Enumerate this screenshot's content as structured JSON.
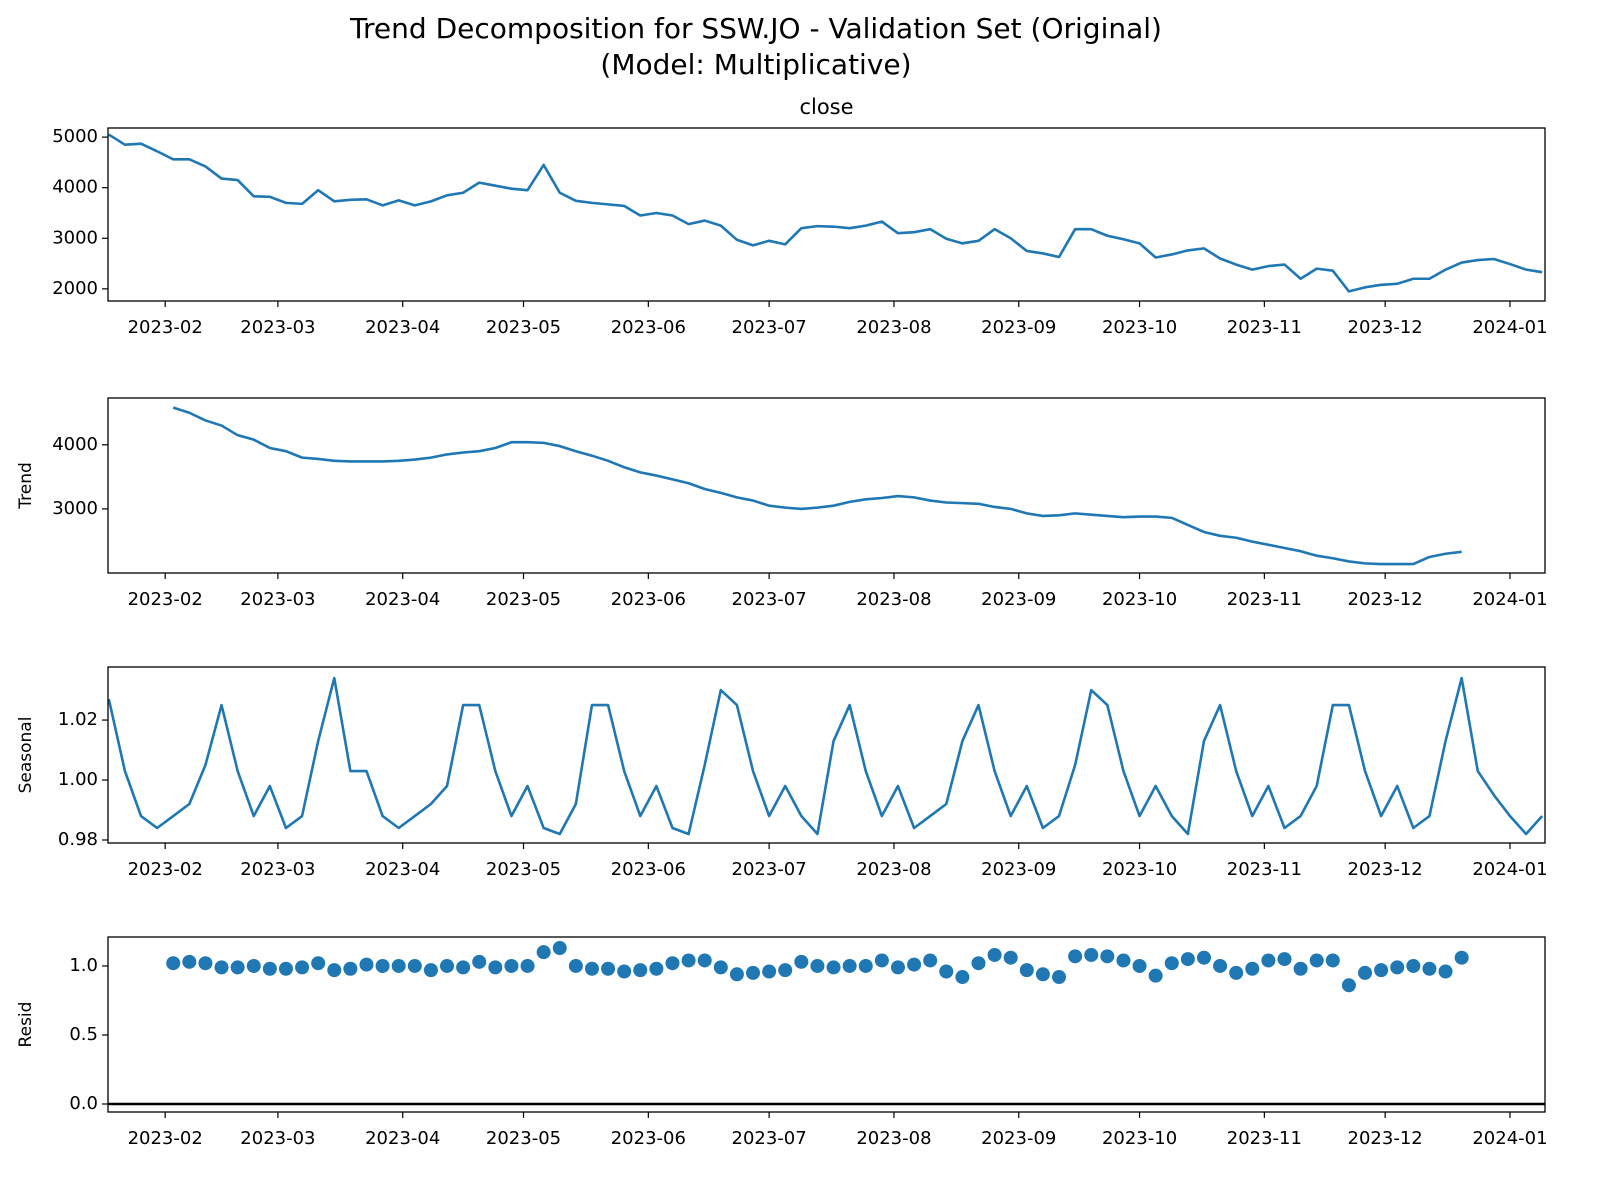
{
  "title": [
    "Trend Decomposition for SSW.JO - Validation Set (Original)",
    "(Model: Multiplicative)"
  ],
  "chart_data": [
    {
      "type": "line",
      "title": "close",
      "color": "#1f77b4",
      "x": [
        17,
        21,
        25,
        29,
        33,
        37,
        41,
        45,
        49,
        53,
        57,
        61,
        65,
        69,
        73,
        77,
        81,
        85,
        89,
        93,
        97,
        101,
        105,
        109,
        113,
        117,
        121,
        125,
        129,
        133,
        137,
        141,
        145,
        149,
        153,
        157,
        161,
        165,
        169,
        173,
        177,
        181,
        185,
        189,
        193,
        197,
        201,
        205,
        209,
        213,
        217,
        221,
        225,
        229,
        233,
        237,
        241,
        245,
        249,
        253,
        257,
        261,
        265,
        269,
        273,
        277,
        281,
        285,
        289,
        293,
        297,
        301,
        305,
        309,
        313,
        317,
        321,
        325,
        329,
        333,
        337,
        341,
        345,
        349,
        353,
        357,
        361,
        365,
        369,
        373
      ],
      "values": [
        5050,
        4850,
        4870,
        4720,
        4560,
        4560,
        4420,
        4180,
        4150,
        3830,
        3820,
        3700,
        3680,
        3950,
        3730,
        3760,
        3770,
        3650,
        3750,
        3650,
        3730,
        3850,
        3900,
        4100,
        4040,
        3980,
        3950,
        4450,
        3900,
        3740,
        3700,
        3670,
        3640,
        3450,
        3500,
        3450,
        3280,
        3350,
        3250,
        2970,
        2860,
        2950,
        2880,
        3200,
        3240,
        3230,
        3200,
        3250,
        3330,
        3100,
        3120,
        3180,
        2990,
        2900,
        2950,
        3180,
        3000,
        2750,
        2700,
        2630,
        3180,
        3180,
        3050,
        2980,
        2900,
        2620,
        2680,
        2760,
        2800,
        2600,
        2480,
        2380,
        2450,
        2480,
        2200,
        2400,
        2360,
        1950,
        2030,
        2080,
        2100,
        2200,
        2200,
        2380,
        2520,
        2570,
        2590,
        2490,
        2380,
        2330
      ],
      "xlim": [
        16.8,
        373.7
      ],
      "xticks": [
        {
          "value": 31,
          "label": "2023-02"
        },
        {
          "value": 59,
          "label": "2023-03"
        },
        {
          "value": 90,
          "label": "2023-04"
        },
        {
          "value": 120,
          "label": "2023-05"
        },
        {
          "value": 151,
          "label": "2023-06"
        },
        {
          "value": 181,
          "label": "2023-07"
        },
        {
          "value": 212,
          "label": "2023-08"
        },
        {
          "value": 243,
          "label": "2023-09"
        },
        {
          "value": 273,
          "label": "2023-10"
        },
        {
          "value": 304,
          "label": "2023-11"
        },
        {
          "value": 334,
          "label": "2023-12"
        },
        {
          "value": 365,
          "label": "2024-01"
        }
      ],
      "ylim": [
        1760,
        5180
      ],
      "yticks": [
        2000,
        3000,
        4000,
        5000
      ]
    },
    {
      "type": "line",
      "ylabel": "Trend",
      "color": "#1f77b4",
      "x": [
        17,
        21,
        25,
        29,
        33,
        37,
        41,
        45,
        49,
        53,
        57,
        61,
        65,
        69,
        73,
        77,
        81,
        85,
        89,
        93,
        97,
        101,
        105,
        109,
        113,
        117,
        121,
        125,
        129,
        133,
        137,
        141,
        145,
        149,
        153,
        157,
        161,
        165,
        169,
        173,
        177,
        181,
        185,
        189,
        193,
        197,
        201,
        205,
        209,
        213,
        217,
        221,
        225,
        229,
        233,
        237,
        241,
        245,
        249,
        253,
        257,
        261,
        265,
        269,
        273,
        277,
        281,
        285,
        289,
        293,
        297,
        301,
        305,
        309,
        313,
        317,
        321,
        325,
        329,
        333,
        337,
        341,
        345,
        349,
        353,
        357,
        361,
        365,
        369,
        373
      ],
      "values": [
        null,
        null,
        null,
        null,
        4580,
        4500,
        4380,
        4300,
        4150,
        4080,
        3950,
        3900,
        3800,
        3780,
        3750,
        3740,
        3740,
        3740,
        3750,
        3770,
        3800,
        3850,
        3880,
        3900,
        3950,
        4040,
        4040,
        4030,
        3980,
        3900,
        3830,
        3750,
        3650,
        3570,
        3520,
        3460,
        3400,
        3310,
        3250,
        3180,
        3130,
        3050,
        3020,
        3000,
        3020,
        3050,
        3110,
        3150,
        3170,
        3200,
        3180,
        3130,
        3100,
        3090,
        3080,
        3030,
        3000,
        2930,
        2890,
        2900,
        2930,
        2910,
        2890,
        2870,
        2880,
        2880,
        2860,
        2750,
        2640,
        2580,
        2550,
        2490,
        2440,
        2390,
        2340,
        2270,
        2230,
        2180,
        2150,
        2140,
        2140,
        2140,
        2250,
        2300,
        2330,
        null,
        null,
        null,
        null,
        null
      ],
      "xlim": [
        16.8,
        373.7
      ],
      "xticks": [
        {
          "value": 31,
          "label": "2023-02"
        },
        {
          "value": 59,
          "label": "2023-03"
        },
        {
          "value": 90,
          "label": "2023-04"
        },
        {
          "value": 120,
          "label": "2023-05"
        },
        {
          "value": 151,
          "label": "2023-06"
        },
        {
          "value": 181,
          "label": "2023-07"
        },
        {
          "value": 212,
          "label": "2023-08"
        },
        {
          "value": 243,
          "label": "2023-09"
        },
        {
          "value": 273,
          "label": "2023-10"
        },
        {
          "value": 304,
          "label": "2023-11"
        },
        {
          "value": 334,
          "label": "2023-12"
        },
        {
          "value": 365,
          "label": "2024-01"
        }
      ],
      "ylim": [
        2000,
        4730
      ],
      "yticks": [
        3000,
        4000
      ]
    },
    {
      "type": "line",
      "ylabel": "Seasonal",
      "color": "#1f77b4",
      "x": [
        17,
        21,
        25,
        29,
        33,
        37,
        41,
        45,
        49,
        53,
        57,
        61,
        65,
        69,
        73,
        77,
        81,
        85,
        89,
        93,
        97,
        101,
        105,
        109,
        113,
        117,
        121,
        125,
        129,
        133,
        137,
        141,
        145,
        149,
        153,
        157,
        161,
        165,
        169,
        173,
        177,
        181,
        185,
        189,
        193,
        197,
        201,
        205,
        209,
        213,
        217,
        221,
        225,
        229,
        233,
        237,
        241,
        245,
        249,
        253,
        257,
        261,
        265,
        269,
        273,
        277,
        281,
        285,
        289,
        293,
        297,
        301,
        305,
        309,
        313,
        317,
        321,
        325,
        329,
        333,
        337,
        341,
        345,
        349,
        353,
        357,
        361,
        365,
        369,
        373
      ],
      "values": [
        1.027,
        1.003,
        0.988,
        0.984,
        0.988,
        0.992,
        1.005,
        1.025,
        1.003,
        0.988,
        0.998,
        0.984,
        0.988,
        1.013,
        1.034,
        1.003,
        1.003,
        0.988,
        0.984,
        0.988,
        0.992,
        0.998,
        1.025,
        1.025,
        1.003,
        0.988,
        0.998,
        0.984,
        0.982,
        0.992,
        1.025,
        1.025,
        1.003,
        0.988,
        0.998,
        0.984,
        0.982,
        1.005,
        1.03,
        1.025,
        1.003,
        0.988,
        0.998,
        0.988,
        0.982,
        1.013,
        1.025,
        1.003,
        0.988,
        0.998,
        0.984,
        0.988,
        0.992,
        1.013,
        1.025,
        1.003,
        0.988,
        0.998,
        0.984,
        0.988,
        1.005,
        1.03,
        1.025,
        1.003,
        0.988,
        0.998,
        0.988,
        0.982,
        1.013,
        1.025,
        1.003,
        0.988,
        0.998,
        0.984,
        0.988,
        0.998,
        1.025,
        1.025,
        1.003,
        0.988,
        0.998,
        0.984,
        0.988,
        1.013,
        1.034,
        1.003,
        0.995,
        0.988,
        0.982,
        0.988
      ],
      "xlim": [
        16.8,
        373.7
      ],
      "xticks": [
        {
          "value": 31,
          "label": "2023-02"
        },
        {
          "value": 59,
          "label": "2023-03"
        },
        {
          "value": 90,
          "label": "2023-04"
        },
        {
          "value": 120,
          "label": "2023-05"
        },
        {
          "value": 151,
          "label": "2023-06"
        },
        {
          "value": 181,
          "label": "2023-07"
        },
        {
          "value": 212,
          "label": "2023-08"
        },
        {
          "value": 243,
          "label": "2023-09"
        },
        {
          "value": 273,
          "label": "2023-10"
        },
        {
          "value": 304,
          "label": "2023-11"
        },
        {
          "value": 334,
          "label": "2023-12"
        },
        {
          "value": 365,
          "label": "2024-01"
        }
      ],
      "ylim": [
        0.979,
        1.0377
      ],
      "yticks": [
        0.98,
        {
          "value": 1,
          "label": "1.00"
        },
        1.02
      ]
    },
    {
      "type": "scatter",
      "ylabel": "Resid",
      "color": "#1f77b4",
      "baseline": 0,
      "x": [
        17,
        21,
        25,
        29,
        33,
        37,
        41,
        45,
        49,
        53,
        57,
        61,
        65,
        69,
        73,
        77,
        81,
        85,
        89,
        93,
        97,
        101,
        105,
        109,
        113,
        117,
        121,
        125,
        129,
        133,
        137,
        141,
        145,
        149,
        153,
        157,
        161,
        165,
        169,
        173,
        177,
        181,
        185,
        189,
        193,
        197,
        201,
        205,
        209,
        213,
        217,
        221,
        225,
        229,
        233,
        237,
        241,
        245,
        249,
        253,
        257,
        261,
        265,
        269,
        273,
        277,
        281,
        285,
        289,
        293,
        297,
        301,
        305,
        309,
        313,
        317,
        321,
        325,
        329,
        333,
        337,
        341,
        345,
        349,
        353,
        357,
        361,
        365,
        369,
        373
      ],
      "values": [
        null,
        null,
        null,
        null,
        1.02,
        1.03,
        1.02,
        0.99,
        0.99,
        1.0,
        0.98,
        0.98,
        0.99,
        1.02,
        0.97,
        0.98,
        1.01,
        1.0,
        1.0,
        1.0,
        0.97,
        1.0,
        0.99,
        1.03,
        0.99,
        1.0,
        1.0,
        1.1,
        1.13,
        1.0,
        0.98,
        0.98,
        0.96,
        0.97,
        0.98,
        1.02,
        1.04,
        1.04,
        0.99,
        0.94,
        0.95,
        0.96,
        0.97,
        1.03,
        1.0,
        0.99,
        1.0,
        1.0,
        1.04,
        0.99,
        1.01,
        1.04,
        0.96,
        0.92,
        1.02,
        1.08,
        1.06,
        0.97,
        0.94,
        0.92,
        1.07,
        1.08,
        1.07,
        1.04,
        1.0,
        0.93,
        1.02,
        1.05,
        1.06,
        1.0,
        0.95,
        0.98,
        1.04,
        1.05,
        0.98,
        1.04,
        1.04,
        0.86,
        0.95,
        0.97,
        0.99,
        1.0,
        0.98,
        0.96,
        1.06,
        null,
        null,
        null,
        null,
        null
      ],
      "xlim": [
        16.8,
        373.7
      ],
      "xticks": [
        {
          "value": 31,
          "label": "2023-02"
        },
        {
          "value": 59,
          "label": "2023-03"
        },
        {
          "value": 90,
          "label": "2023-04"
        },
        {
          "value": 120,
          "label": "2023-05"
        },
        {
          "value": 151,
          "label": "2023-06"
        },
        {
          "value": 181,
          "label": "2023-07"
        },
        {
          "value": 212,
          "label": "2023-08"
        },
        {
          "value": 243,
          "label": "2023-09"
        },
        {
          "value": 273,
          "label": "2023-10"
        },
        {
          "value": 304,
          "label": "2023-11"
        },
        {
          "value": 334,
          "label": "2023-12"
        },
        {
          "value": 365,
          "label": "2024-01"
        }
      ],
      "ylim": [
        -0.058,
        1.21
      ],
      "yticks": [
        {
          "value": 0,
          "label": "0.0"
        },
        0.5,
        {
          "value": 1,
          "label": "1.0"
        }
      ]
    }
  ]
}
